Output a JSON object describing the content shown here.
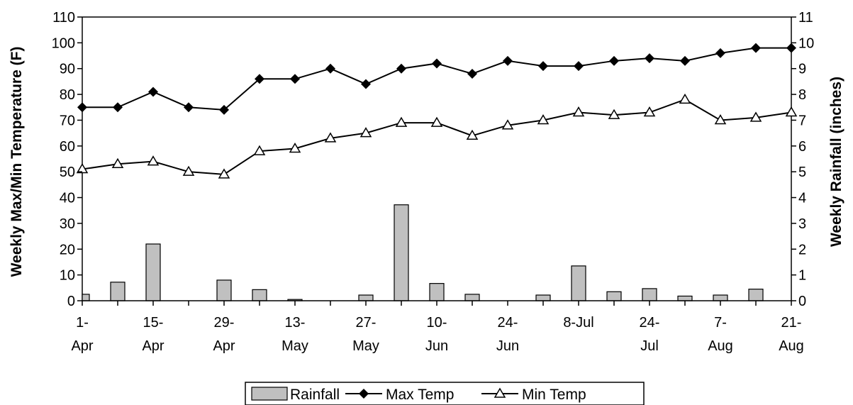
{
  "chart_data": {
    "type": "bar+line",
    "x_tick_labels": [
      [
        "1-",
        "Apr"
      ],
      [
        "15-",
        "Apr"
      ],
      [
        "29-",
        "Apr"
      ],
      [
        "13-",
        "May"
      ],
      [
        "27-",
        "May"
      ],
      [
        "10-",
        "Jun"
      ],
      [
        "24-",
        "Jun"
      ],
      [
        "8-Jul",
        ""
      ],
      [
        "24-",
        "Jul"
      ],
      [
        "7-",
        "Aug"
      ],
      [
        "21-",
        "Aug"
      ]
    ],
    "n_weeks": 21,
    "ylabel": "Weekly Max/Min Temperature (F)",
    "ylabel_right": "Weekly Rainfall (inches)",
    "ylim": [
      0,
      110
    ],
    "ylim_right": [
      0,
      11
    ],
    "y_ticks": [
      0,
      10,
      20,
      30,
      40,
      50,
      60,
      70,
      80,
      90,
      100,
      110
    ],
    "y_ticks_right": [
      0,
      1,
      2,
      3,
      4,
      5,
      6,
      7,
      8,
      9,
      10,
      11
    ],
    "grid": false,
    "legend_position": "bottom",
    "series": [
      {
        "name": "Rainfall",
        "kind": "bar",
        "axis": "right",
        "color": "#c0c0c0",
        "values": [
          0.25,
          0.72,
          2.2,
          0.0,
          0.8,
          0.43,
          0.05,
          0.0,
          0.22,
          3.72,
          0.67,
          0.25,
          0.0,
          0.22,
          1.35,
          0.35,
          0.47,
          0.18,
          0.22,
          0.45,
          0.0
        ]
      },
      {
        "name": "Max Temp",
        "kind": "line",
        "axis": "left",
        "marker": "diamond",
        "values": [
          75,
          75,
          81,
          75,
          74,
          86,
          86,
          90,
          84,
          90,
          92,
          88,
          93,
          91,
          91,
          93,
          94,
          93,
          96,
          98,
          98
        ]
      },
      {
        "name": "Min Temp",
        "kind": "line",
        "axis": "left",
        "marker": "triangle",
        "values": [
          51,
          53,
          54,
          50,
          49,
          58,
          59,
          63,
          65,
          69,
          69,
          64,
          68,
          70,
          73,
          72,
          73,
          78,
          70,
          71,
          73
        ]
      }
    ]
  }
}
